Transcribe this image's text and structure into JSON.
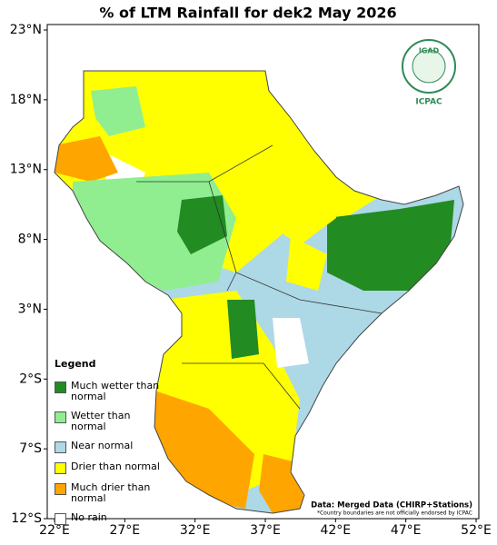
{
  "title": "% of LTM Rainfall for dek2 May 2026",
  "lat_labels": [
    "23°N",
    "18°N",
    "13°N",
    "8°N",
    "3°N",
    "2°S",
    "7°S",
    "12°S"
  ],
  "lon_labels": [
    "22°E",
    "27°E",
    "32°E",
    "37°E",
    "42°E",
    "47°E",
    "52°E"
  ],
  "legend": {
    "title": "Legend",
    "items": [
      {
        "label": "Much wetter than normal",
        "color": "#228b22"
      },
      {
        "label": "Wetter than normal",
        "color": "#90ee90"
      },
      {
        "label": "Near normal",
        "color": "#add8e6"
      },
      {
        "label": "Drier than normal",
        "color": "#ffff00"
      },
      {
        "label": "Much drier than normal",
        "color": "#ffa500"
      },
      {
        "label": "No rain",
        "color": "#ffffff"
      }
    ]
  },
  "logo": {
    "name": "IGAD",
    "org": "ICPAC"
  },
  "source": "Data: Merged Data (CHIRP+Stations)",
  "disclaimer": "*Country boundaries are not officially endorsed by ICPAC"
}
